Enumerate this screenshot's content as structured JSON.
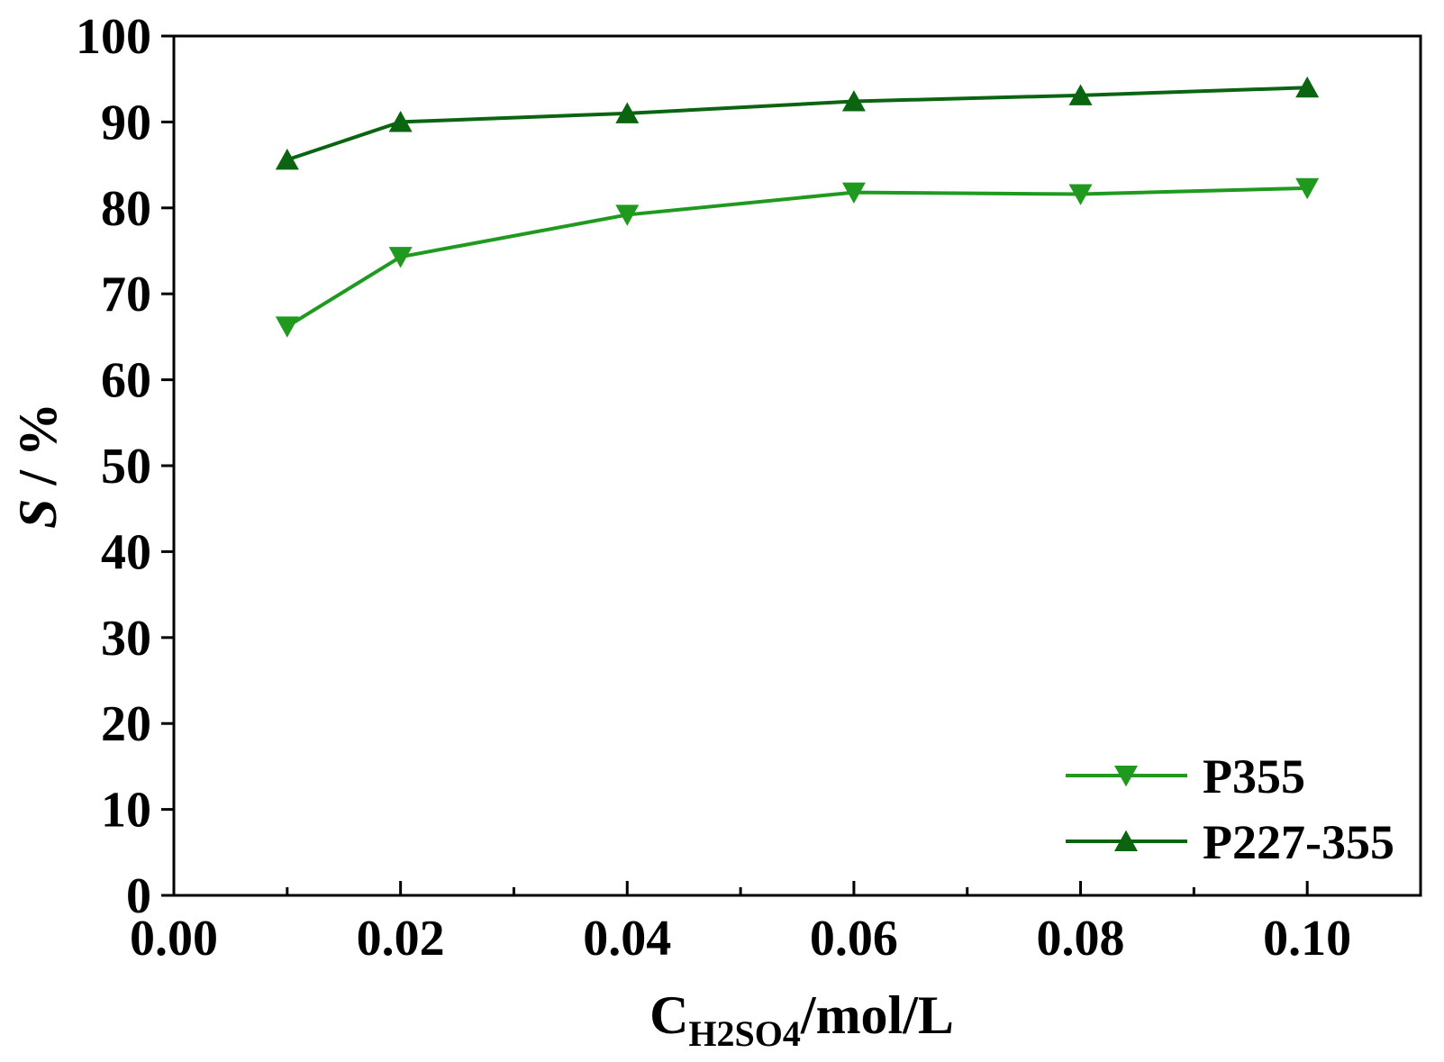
{
  "chart_data": {
    "type": "line",
    "xlabel": {
      "main": "C",
      "sub": "H2SO4",
      "unit": "/mol/L"
    },
    "ylabel": {
      "italic": "S",
      "rest": " / %"
    },
    "xlim": [
      0.0,
      0.11
    ],
    "ylim": [
      0,
      100
    ],
    "x_ticks": [
      0.0,
      0.02,
      0.04,
      0.06,
      0.08,
      0.1
    ],
    "x_tick_labels": [
      "0.00",
      "0.02",
      "0.04",
      "0.06",
      "0.08",
      "0.10"
    ],
    "y_ticks": [
      0,
      10,
      20,
      30,
      40,
      50,
      60,
      70,
      80,
      90,
      100
    ],
    "y_tick_labels": [
      "0",
      "10",
      "20",
      "30",
      "40",
      "50",
      "60",
      "70",
      "80",
      "90",
      "100"
    ],
    "grid": false,
    "legend_position": "bottom-right",
    "series": [
      {
        "name": "P355",
        "marker": "triangle-down",
        "color": "#1f9a1f",
        "x": [
          0.01,
          0.02,
          0.04,
          0.06,
          0.08,
          0.1
        ],
        "y": [
          66.2,
          74.3,
          79.2,
          81.8,
          81.6,
          82.3
        ]
      },
      {
        "name": "P227-355",
        "marker": "triangle-up",
        "color": "#0a6410",
        "x": [
          0.01,
          0.02,
          0.04,
          0.06,
          0.08,
          0.1
        ],
        "y": [
          85.6,
          90.0,
          91.0,
          92.4,
          93.1,
          94.0
        ]
      }
    ]
  }
}
